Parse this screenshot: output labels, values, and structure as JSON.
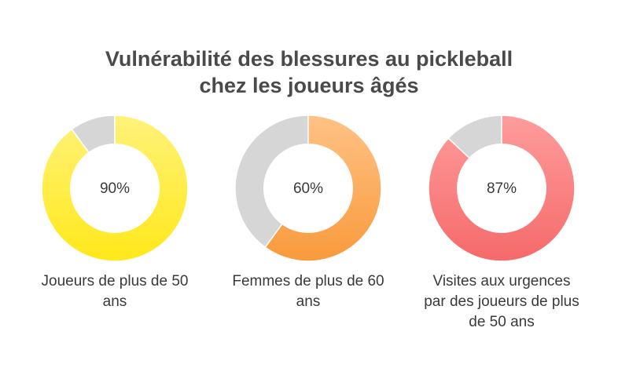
{
  "title": {
    "line1": "Vulnérabilité des blessures au pickleball",
    "line2": "chez les joueurs âgés"
  },
  "chart_data": {
    "type": "donut",
    "title": "Vulnérabilité des blessures au pickleball chez les joueurs âgés",
    "items": [
      {
        "value": 90,
        "value_label": "90%",
        "label": "Joueurs de plus de 50 ans",
        "label_lines": [
          "Joueurs de plus de 50",
          "ans"
        ],
        "color_start": "#fff27a",
        "color_end": "#ffe81a",
        "remainder_color": "#d6d6d6"
      },
      {
        "value": 60,
        "value_label": "60%",
        "label": "Femmes de plus de 60 ans",
        "label_lines": [
          "Femmes de plus de 60",
          "ans"
        ],
        "color_start": "#ffc285",
        "color_end": "#f99a3c",
        "remainder_color": "#d6d6d6"
      },
      {
        "value": 87,
        "value_label": "87%",
        "label": "Visites aux urgences par des joueurs de plus de 50 ans",
        "label_lines": [
          "Visites aux urgences",
          "par des joueurs de plus",
          "de 50 ans"
        ],
        "color_start": "#ff9c9c",
        "color_end": "#f56a6a",
        "remainder_color": "#d6d6d6"
      }
    ]
  }
}
